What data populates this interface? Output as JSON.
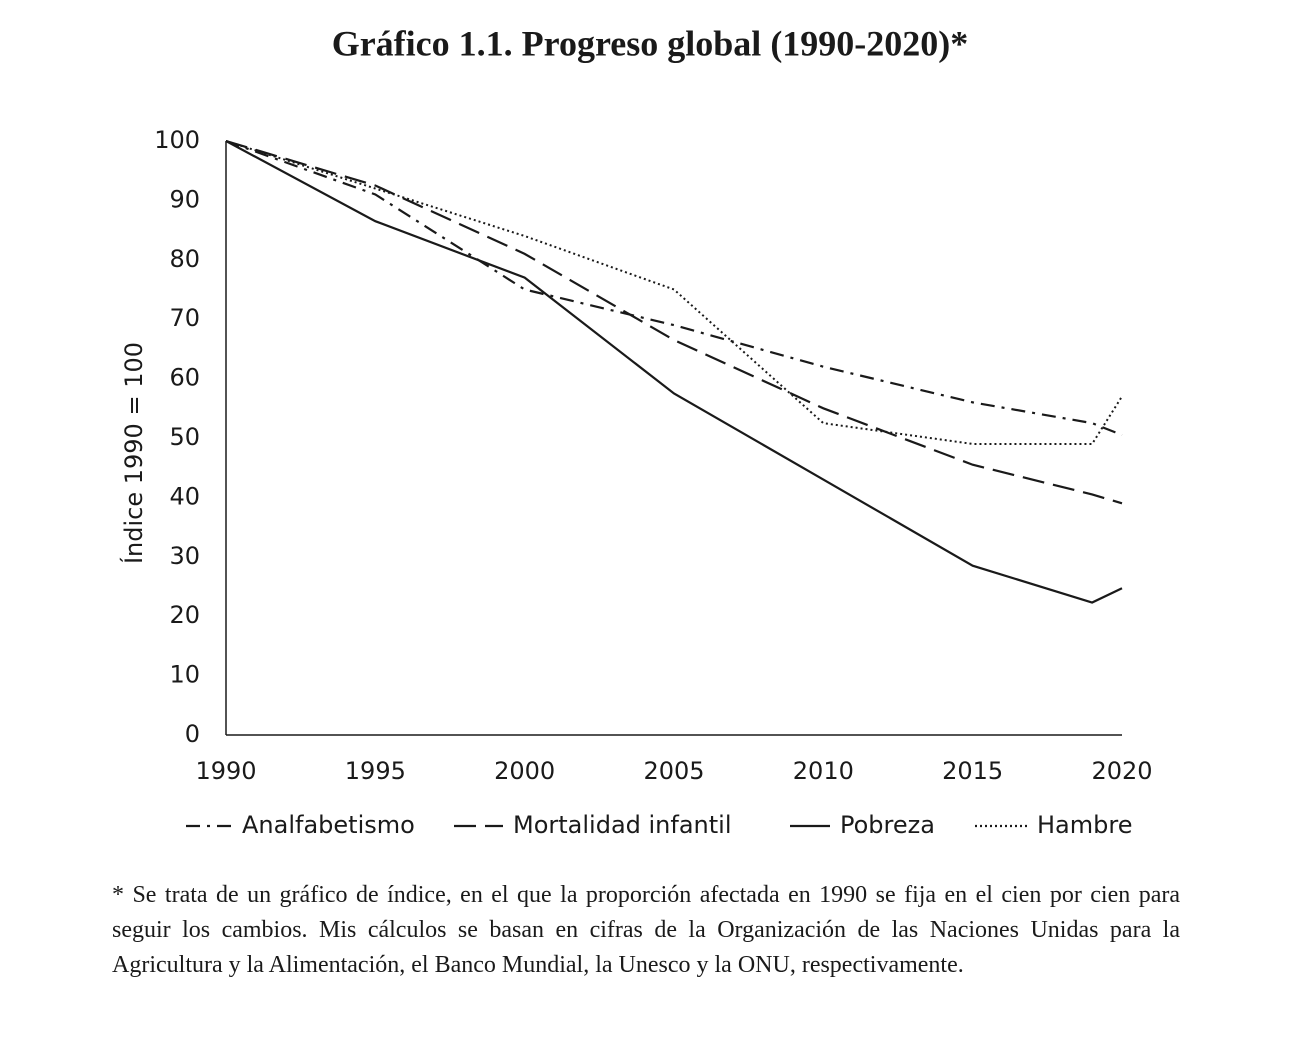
{
  "chart_data": {
    "type": "line",
    "title": "Gráfico 1.1.  Progreso global (1990-2020)*",
    "y_label": "Índice 1990 = 100",
    "x": [
      1990,
      1995,
      2000,
      2005,
      2010,
      2015,
      2019,
      2020
    ],
    "xlim": [
      1990,
      2020
    ],
    "xticks": [
      1990,
      1995,
      2000,
      2005,
      2010,
      2015,
      2020
    ],
    "ylim": [
      0,
      100
    ],
    "yticks": [
      0,
      10,
      20,
      30,
      40,
      50,
      60,
      70,
      80,
      90,
      100
    ],
    "grid": false,
    "series": [
      {
        "name": "Analfabetismo",
        "color": "#1a1a1a",
        "dash": "14,7,3,7",
        "values": [
          100,
          91,
          75,
          69,
          62,
          56,
          52.5,
          50.5
        ]
      },
      {
        "name": "Mortalidad infantil",
        "color": "#1a1a1a",
        "dash": "22,9",
        "values": [
          100,
          92.5,
          81,
          66.5,
          55,
          45.5,
          40.5,
          39
        ]
      },
      {
        "name": "Pobreza",
        "color": "#1a1a1a",
        "dash": "none",
        "values": [
          100,
          86.5,
          77,
          57.5,
          43,
          28.5,
          22.3,
          24.7
        ]
      },
      {
        "name": "Hambre",
        "color": "#1a1a1a",
        "dash": "2,3",
        "values": [
          100,
          92,
          84,
          75,
          52.5,
          49,
          49,
          57
        ]
      }
    ],
    "footnote": "* Se trata de un gráfico de índice, en el que la proporción afectada en 1990 se fija en el cien por cien para seguir los cambios. Mis cálculos se basan en cifras de la Organización de las Naciones Unidas para la Agricultura y la Alimentación, el Banco Mundial, la Unesco y la ONU, respectivamente."
  }
}
